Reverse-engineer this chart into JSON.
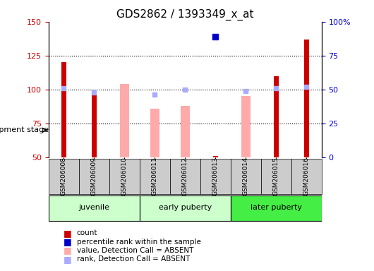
{
  "title": "GDS2862 / 1393349_x_at",
  "samples": [
    "GSM206008",
    "GSM206009",
    "GSM206010",
    "GSM206011",
    "GSM206012",
    "GSM206013",
    "GSM206014",
    "GSM206015",
    "GSM206016"
  ],
  "groups": [
    {
      "label": "juvenile",
      "color": "#aaffaa",
      "samples": [
        0,
        1,
        2
      ]
    },
    {
      "label": "early puberty",
      "color": "#aaffaa",
      "samples": [
        3,
        4,
        5
      ]
    },
    {
      "label": "later puberty",
      "color": "#00ee00",
      "samples": [
        6,
        7,
        8
      ]
    }
  ],
  "group_boundaries": [
    {
      "start": 0,
      "end": 2,
      "label": "juvenile",
      "color": "#bbffbb"
    },
    {
      "start": 3,
      "end": 5,
      "label": "early puberty",
      "color": "#bbffbb"
    },
    {
      "start": 6,
      "end": 8,
      "label": "later puberty",
      "color": "#44ee44"
    }
  ],
  "count_values": [
    120,
    98,
    null,
    null,
    null,
    51,
    null,
    110,
    137
  ],
  "count_color": "#cc0000",
  "percentile_values": [
    null,
    null,
    null,
    null,
    null,
    89,
    null,
    null,
    null
  ],
  "percentile_color": "#0000cc",
  "absent_value_bars": [
    null,
    null,
    104,
    86,
    88,
    null,
    95,
    null,
    null
  ],
  "absent_rank_markers": [
    101,
    98,
    null,
    96,
    100,
    null,
    99,
    101,
    102
  ],
  "absent_value_color": "#ffaaaa",
  "absent_rank_color": "#aaaaff",
  "ylim_left": [
    50,
    150
  ],
  "ylim_right": [
    0,
    100
  ],
  "yticks_left": [
    50,
    75,
    100,
    125,
    150
  ],
  "yticks_right": [
    0,
    25,
    50,
    75,
    100
  ],
  "yticklabels_right": [
    "0",
    "25",
    "50",
    "75",
    "100%"
  ],
  "grid_values": [
    75,
    100,
    125
  ],
  "bar_bottom": 50
}
